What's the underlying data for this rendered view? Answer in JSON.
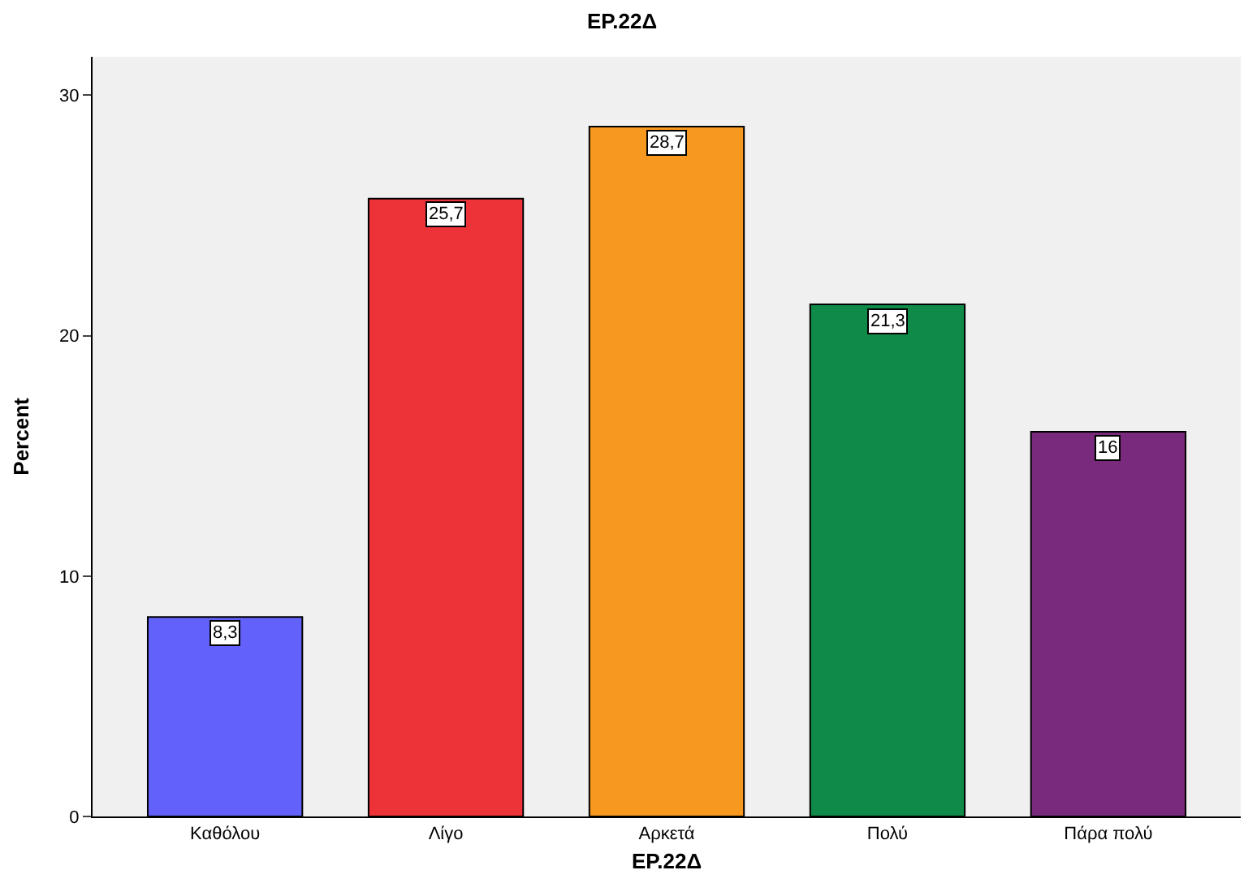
{
  "chart_data": {
    "type": "bar",
    "title": "EP.22Δ",
    "xlabel": "EP.22Δ",
    "ylabel": "Percent",
    "categories": [
      "Καθόλου",
      "Λίγο",
      "Αρκετά",
      "Πολύ",
      "Πάρα πολύ"
    ],
    "values": [
      8.3,
      25.7,
      28.7,
      21.3,
      16
    ],
    "colors": [
      "#6262fa",
      "#ee3338",
      "#f7981f",
      "#0f8a48",
      "#7a2a7c"
    ],
    "value_labels": [
      "8,3",
      "25,7",
      "28,7",
      "21,3",
      "16"
    ],
    "ylim": [
      0,
      31.6
    ],
    "yticks": [
      0,
      10,
      20,
      30
    ],
    "grid": false,
    "legend": false
  }
}
